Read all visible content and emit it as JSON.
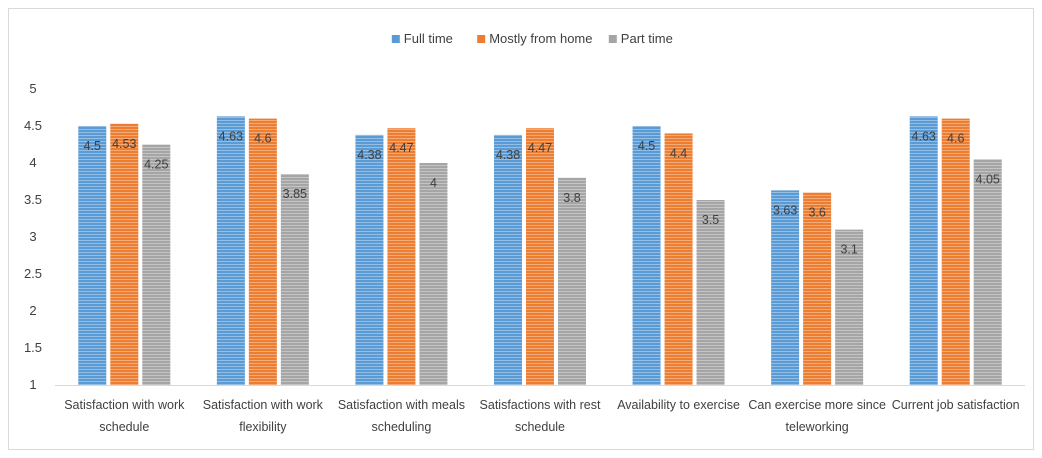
{
  "chart_data": {
    "type": "bar",
    "title": "",
    "xlabel": "",
    "ylabel": "",
    "ylim": [
      1,
      5
    ],
    "yticks": [
      1,
      1.5,
      2,
      2.5,
      3,
      3.5,
      4,
      4.5,
      5
    ],
    "legend_position": "top-center",
    "gridlines": false,
    "categories": [
      [
        "Satisfaction with work",
        "schedule"
      ],
      [
        "Satisfaction with work",
        "flexibility"
      ],
      [
        "Satisfaction with meals",
        "scheduling"
      ],
      [
        "Satisfactions with rest",
        "schedule"
      ],
      [
        "Availability to exercise"
      ],
      [
        "Can exercise more since",
        "teleworking"
      ],
      [
        "Current job satisfaction"
      ]
    ],
    "series": [
      {
        "name": "Full time",
        "color": "#5b9bd5",
        "values": [
          4.5,
          4.63,
          4.38,
          4.38,
          4.5,
          3.63,
          4.63
        ],
        "labels": [
          "4.5",
          "4.63",
          "4.38",
          "4.38",
          "4.5",
          "3.63",
          "4.63"
        ]
      },
      {
        "name": "Mostly from home",
        "color": "#ed7d31",
        "values": [
          4.53,
          4.6,
          4.47,
          4.47,
          4.4,
          3.6,
          4.6
        ],
        "labels": [
          "4.53",
          "4.6",
          "4.47",
          "4.47",
          "4.4",
          "3.6",
          "4.6"
        ]
      },
      {
        "name": "Part time",
        "color": "#a5a5a5",
        "values": [
          4.25,
          3.85,
          4,
          3.8,
          3.5,
          3.1,
          4.05
        ],
        "labels": [
          "4.25",
          "3.85",
          "4",
          "3.8",
          "3.5",
          "3.1",
          "4.05"
        ]
      }
    ]
  }
}
